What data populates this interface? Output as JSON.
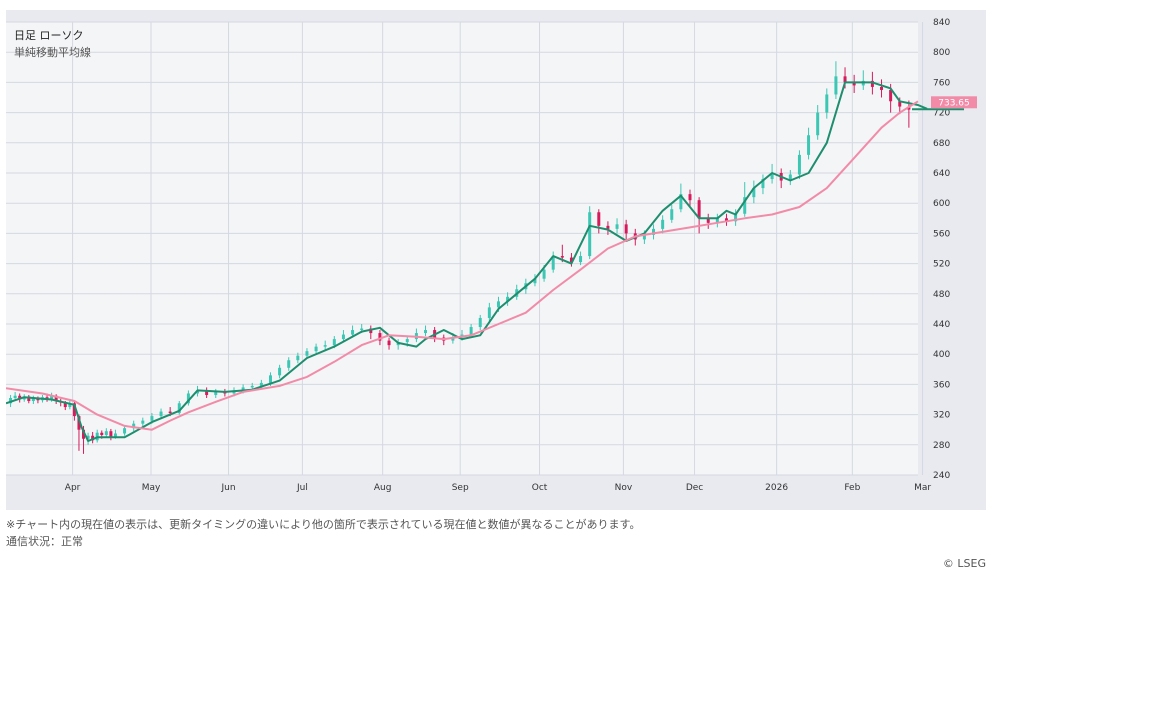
{
  "chart_data": {
    "type": "candlestick",
    "title": "日足 ローソク",
    "subtitle": "単純移動平均線",
    "last_price_label": "733.65",
    "ylim": [
      240,
      840
    ],
    "yticks": [
      240,
      280,
      320,
      360,
      400,
      440,
      480,
      520,
      560,
      600,
      640,
      680,
      720,
      760,
      800,
      840
    ],
    "xticks": [
      {
        "label": "Apr",
        "pos": 0.073
      },
      {
        "label": "May",
        "pos": 0.159
      },
      {
        "label": "Jun",
        "pos": 0.244
      },
      {
        "label": "Jul",
        "pos": 0.325
      },
      {
        "label": "Aug",
        "pos": 0.413
      },
      {
        "label": "Sep",
        "pos": 0.498
      },
      {
        "label": "Oct",
        "pos": 0.585
      },
      {
        "label": "Nov",
        "pos": 0.677
      },
      {
        "label": "Dec",
        "pos": 0.755
      },
      {
        "label": "2026",
        "pos": 0.845
      },
      {
        "label": "Feb",
        "pos": 0.928
      },
      {
        "label": "Mar",
        "pos": 1.005
      }
    ],
    "series": [
      {
        "name": "short-ma",
        "x": [
          0.0,
          0.02,
          0.05,
          0.075,
          0.083,
          0.09,
          0.1,
          0.13,
          0.16,
          0.19,
          0.21,
          0.24,
          0.27,
          0.3,
          0.33,
          0.36,
          0.39,
          0.41,
          0.43,
          0.45,
          0.46,
          0.48,
          0.5,
          0.52,
          0.54,
          0.56,
          0.58,
          0.6,
          0.62,
          0.64,
          0.66,
          0.68,
          0.7,
          0.72,
          0.74,
          0.76,
          0.78,
          0.79,
          0.8,
          0.82,
          0.84,
          0.86,
          0.88,
          0.9,
          0.92,
          0.95,
          0.97,
          0.98,
          1.0,
          1.01
        ],
        "values": [
          335,
          343,
          340,
          333,
          303,
          285,
          290,
          290,
          310,
          325,
          352,
          350,
          353,
          365,
          395,
          410,
          430,
          435,
          415,
          410,
          420,
          432,
          420,
          425,
          460,
          480,
          500,
          530,
          520,
          570,
          565,
          550,
          560,
          590,
          610,
          580,
          580,
          590,
          585,
          620,
          640,
          630,
          640,
          680,
          760,
          760,
          752,
          735,
          730,
          725
        ],
        "color": "#1e8e6e"
      },
      {
        "name": "long-ma",
        "x": [
          0.0,
          0.04,
          0.075,
          0.1,
          0.13,
          0.16,
          0.18,
          0.2,
          0.23,
          0.26,
          0.3,
          0.33,
          0.36,
          0.39,
          0.42,
          0.45,
          0.48,
          0.51,
          0.54,
          0.57,
          0.6,
          0.63,
          0.66,
          0.69,
          0.72,
          0.75,
          0.78,
          0.81,
          0.84,
          0.87,
          0.9,
          0.93,
          0.96,
          0.98,
          1.0
        ],
        "values": [
          355,
          348,
          338,
          320,
          305,
          300,
          312,
          323,
          337,
          350,
          358,
          370,
          390,
          412,
          425,
          423,
          420,
          425,
          440,
          455,
          485,
          512,
          540,
          556,
          562,
          568,
          574,
          580,
          585,
          595,
          620,
          660,
          700,
          720,
          735
        ],
        "color": "#f28ba8"
      }
    ],
    "candles": [
      [
        0.005,
        335,
        342,
        346,
        330
      ],
      [
        0.01,
        342,
        345,
        350,
        338
      ],
      [
        0.015,
        345,
        340,
        348,
        336
      ],
      [
        0.02,
        340,
        344,
        347,
        337
      ],
      [
        0.025,
        344,
        338,
        346,
        335
      ],
      [
        0.03,
        338,
        341,
        345,
        334
      ],
      [
        0.035,
        341,
        339,
        344,
        335
      ],
      [
        0.04,
        339,
        343,
        346,
        336
      ],
      [
        0.045,
        343,
        340,
        348,
        337
      ],
      [
        0.05,
        340,
        345,
        349,
        337
      ],
      [
        0.055,
        345,
        338,
        347,
        334
      ],
      [
        0.06,
        338,
        336,
        341,
        331
      ],
      [
        0.065,
        336,
        330,
        338,
        326
      ],
      [
        0.07,
        330,
        335,
        338,
        327
      ],
      [
        0.075,
        335,
        318,
        337,
        312
      ],
      [
        0.08,
        318,
        300,
        320,
        272
      ],
      [
        0.085,
        300,
        288,
        305,
        268
      ],
      [
        0.09,
        288,
        292,
        296,
        280
      ],
      [
        0.095,
        292,
        286,
        297,
        282
      ],
      [
        0.1,
        286,
        296,
        300,
        283
      ],
      [
        0.105,
        296,
        293,
        299,
        288
      ],
      [
        0.11,
        293,
        298,
        302,
        290
      ],
      [
        0.115,
        298,
        291,
        301,
        286
      ],
      [
        0.12,
        291,
        295,
        300,
        288
      ],
      [
        0.13,
        295,
        302,
        306,
        292
      ],
      [
        0.14,
        302,
        308,
        312,
        298
      ],
      [
        0.15,
        308,
        312,
        316,
        304
      ],
      [
        0.16,
        312,
        318,
        322,
        308
      ],
      [
        0.17,
        318,
        324,
        328,
        314
      ],
      [
        0.18,
        324,
        322,
        330,
        318
      ],
      [
        0.19,
        322,
        335,
        338,
        320
      ],
      [
        0.2,
        335,
        348,
        352,
        332
      ],
      [
        0.21,
        348,
        352,
        358,
        344
      ],
      [
        0.22,
        352,
        346,
        356,
        342
      ],
      [
        0.23,
        346,
        350,
        354,
        342
      ],
      [
        0.24,
        350,
        348,
        354,
        344
      ],
      [
        0.25,
        348,
        352,
        356,
        344
      ],
      [
        0.26,
        352,
        356,
        360,
        348
      ],
      [
        0.27,
        356,
        358,
        362,
        352
      ],
      [
        0.28,
        358,
        362,
        366,
        354
      ],
      [
        0.29,
        362,
        372,
        376,
        358
      ],
      [
        0.3,
        372,
        382,
        386,
        368
      ],
      [
        0.31,
        382,
        392,
        396,
        378
      ],
      [
        0.32,
        392,
        398,
        402,
        388
      ],
      [
        0.33,
        398,
        404,
        408,
        394
      ],
      [
        0.34,
        404,
        410,
        414,
        400
      ],
      [
        0.35,
        410,
        412,
        418,
        406
      ],
      [
        0.36,
        412,
        420,
        424,
        408
      ],
      [
        0.37,
        420,
        426,
        432,
        416
      ],
      [
        0.38,
        426,
        432,
        438,
        422
      ],
      [
        0.39,
        432,
        434,
        440,
        428
      ],
      [
        0.4,
        434,
        428,
        438,
        420
      ],
      [
        0.41,
        428,
        418,
        432,
        412
      ],
      [
        0.42,
        418,
        412,
        422,
        406
      ],
      [
        0.43,
        412,
        416,
        420,
        406
      ],
      [
        0.44,
        416,
        420,
        424,
        410
      ],
      [
        0.45,
        420,
        428,
        434,
        416
      ],
      [
        0.46,
        428,
        432,
        438,
        424
      ],
      [
        0.47,
        432,
        422,
        436,
        416
      ],
      [
        0.48,
        422,
        418,
        426,
        412
      ],
      [
        0.49,
        418,
        422,
        428,
        414
      ],
      [
        0.5,
        422,
        426,
        432,
        418
      ],
      [
        0.51,
        426,
        436,
        440,
        422
      ],
      [
        0.52,
        436,
        448,
        452,
        432
      ],
      [
        0.53,
        448,
        462,
        468,
        444
      ],
      [
        0.54,
        462,
        470,
        476,
        456
      ],
      [
        0.55,
        470,
        476,
        482,
        464
      ],
      [
        0.56,
        476,
        486,
        492,
        472
      ],
      [
        0.57,
        486,
        494,
        500,
        480
      ],
      [
        0.58,
        494,
        500,
        506,
        490
      ],
      [
        0.59,
        500,
        512,
        518,
        496
      ],
      [
        0.6,
        512,
        530,
        536,
        508
      ],
      [
        0.61,
        530,
        528,
        545,
        522
      ],
      [
        0.62,
        528,
        522,
        534,
        516
      ],
      [
        0.63,
        522,
        530,
        536,
        518
      ],
      [
        0.64,
        530,
        588,
        596,
        526
      ],
      [
        0.65,
        588,
        570,
        592,
        560
      ],
      [
        0.66,
        570,
        566,
        576,
        558
      ],
      [
        0.67,
        566,
        572,
        580,
        560
      ],
      [
        0.68,
        572,
        560,
        578,
        552
      ],
      [
        0.69,
        560,
        552,
        566,
        544
      ],
      [
        0.7,
        552,
        558,
        564,
        546
      ],
      [
        0.71,
        558,
        566,
        572,
        552
      ],
      [
        0.72,
        566,
        578,
        584,
        560
      ],
      [
        0.73,
        578,
        592,
        598,
        574
      ],
      [
        0.74,
        592,
        612,
        626,
        588
      ],
      [
        0.75,
        612,
        604,
        618,
        594
      ],
      [
        0.76,
        604,
        580,
        608,
        560
      ],
      [
        0.77,
        580,
        574,
        586,
        566
      ],
      [
        0.78,
        574,
        580,
        586,
        568
      ],
      [
        0.79,
        580,
        576,
        586,
        570
      ],
      [
        0.8,
        576,
        586,
        592,
        570
      ],
      [
        0.81,
        586,
        608,
        628,
        582
      ],
      [
        0.82,
        608,
        620,
        630,
        600
      ],
      [
        0.83,
        620,
        632,
        638,
        612
      ],
      [
        0.84,
        632,
        640,
        652,
        626
      ],
      [
        0.85,
        640,
        630,
        646,
        620
      ],
      [
        0.86,
        630,
        638,
        644,
        624
      ],
      [
        0.87,
        638,
        664,
        670,
        632
      ],
      [
        0.88,
        664,
        690,
        700,
        658
      ],
      [
        0.89,
        690,
        720,
        730,
        684
      ],
      [
        0.9,
        720,
        744,
        752,
        712
      ],
      [
        0.91,
        744,
        768,
        788,
        738
      ],
      [
        0.92,
        768,
        760,
        780,
        752
      ],
      [
        0.93,
        760,
        756,
        770,
        746
      ],
      [
        0.94,
        756,
        762,
        776,
        750
      ],
      [
        0.95,
        762,
        754,
        774,
        744
      ],
      [
        0.96,
        754,
        750,
        764,
        740
      ],
      [
        0.97,
        750,
        735,
        758,
        720
      ],
      [
        0.98,
        735,
        728,
        740,
        718
      ],
      [
        0.99,
        728,
        724,
        736,
        700
      ]
    ]
  },
  "footer": {
    "note": "※チャート内の現在値の表示は、更新タイミングの違いにより他の箇所で表示されている現在値と数値が異なることがあります。",
    "status": "通信状況：正常",
    "copyright": "© LSEG"
  },
  "colors": {
    "plot_bg": "#f4f5f7",
    "frame_bg": "#e8eaf0",
    "grid": "#d5d8e0",
    "up_candle": "#3cc7b4",
    "down_candle": "#d61a5c",
    "price_tag": "#f28ba8"
  }
}
